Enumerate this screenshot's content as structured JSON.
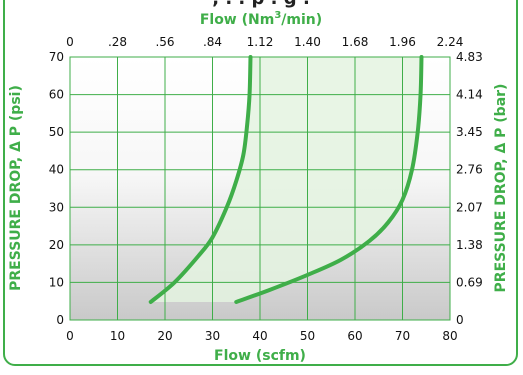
{
  "chart_data": {
    "type": "area",
    "title_fragment": ", . . p . g .",
    "x_bottom": {
      "label": "Flow (scfm)",
      "range": [
        0,
        80
      ],
      "ticks": [
        "0",
        "10",
        "20",
        "30",
        "40",
        "50",
        "60",
        "70",
        "80"
      ]
    },
    "x_top": {
      "label_prefix": "Flow (Nm",
      "label_sup": "3",
      "label_suffix": "/min)",
      "range": [
        0,
        2.24
      ],
      "ticks": [
        "0",
        ".28",
        ".56",
        ".84",
        "1.12",
        "1.40",
        "1.68",
        "1.96",
        "2.24"
      ]
    },
    "y_left": {
      "label": "PRESSURE DROP, Δ P (psi)",
      "range": [
        0,
        70
      ],
      "ticks": [
        "0",
        "10",
        "20",
        "30",
        "40",
        "50",
        "60",
        "70"
      ]
    },
    "y_right": {
      "label": "PRESSURE DROP, Δ P (bar)",
      "range": [
        0,
        4.83
      ],
      "ticks": [
        "0",
        "0.69",
        "1.38",
        "2.07",
        "2.76",
        "3.45",
        "4.14",
        "4.83"
      ]
    },
    "grid": true,
    "shaded_band": {
      "x_left": 17,
      "x_right": 74,
      "y_bottom": 4.8,
      "y_top": 70
    },
    "series": [
      {
        "points": [
          [
            17,
            4.8
          ],
          [
            22,
            10
          ],
          [
            27,
            17
          ],
          [
            30,
            22
          ],
          [
            33,
            30
          ],
          [
            35,
            37
          ],
          [
            36.5,
            44
          ],
          [
            37.3,
            52
          ],
          [
            37.8,
            60
          ],
          [
            38,
            70
          ]
        ]
      },
      {
        "points": [
          [
            35,
            4.8
          ],
          [
            42,
            8
          ],
          [
            50,
            12
          ],
          [
            57,
            16
          ],
          [
            63,
            21
          ],
          [
            67,
            26
          ],
          [
            70,
            32
          ],
          [
            72,
            40
          ],
          [
            73.2,
            50
          ],
          [
            73.8,
            60
          ],
          [
            74,
            70
          ]
        ]
      }
    ],
    "colors": {
      "curve": "#3fae49",
      "band": "#e4f3e1",
      "grid": "#3fae49",
      "title": "#3fae49"
    }
  }
}
